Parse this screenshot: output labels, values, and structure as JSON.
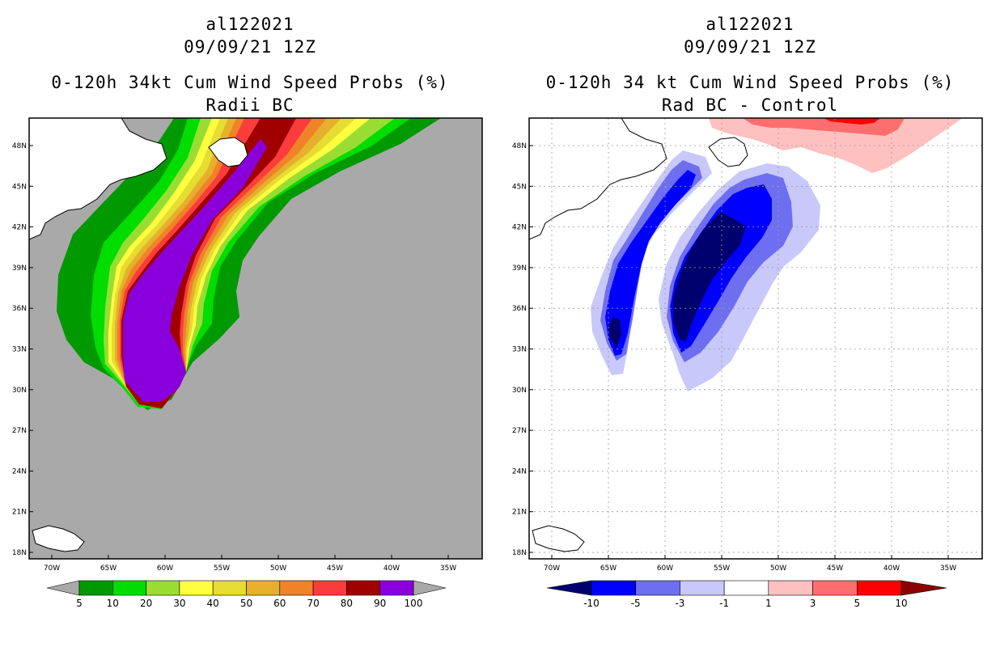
{
  "left_panel": {
    "title_storm": "al122021",
    "title_date": "09/09/21 12Z",
    "title_product": "0-120h 34kt Cum Wind Speed Probs (%)",
    "title_sub": "Radii BC",
    "colorbar_labels": [
      "5",
      "10",
      "20",
      "30",
      "40",
      "50",
      "60",
      "70",
      "80",
      "90",
      "100"
    ],
    "colorbar_colors": [
      "#009a00",
      "#00dd00",
      "#99dd33",
      "#ffff40",
      "#e6dc32",
      "#e6af2d",
      "#f08228",
      "#fa3c3c",
      "#a00000",
      "#8a00dc"
    ]
  },
  "right_panel": {
    "title_storm": "al122021",
    "title_date": "09/09/21 12Z",
    "title_product": "0-120h 34 kt Cum Wind Speed Probs (%)",
    "title_sub": "Rad BC - Control",
    "colorbar_labels": [
      "-10",
      "-5",
      "-3",
      "-1",
      "1",
      "3",
      "5",
      "10"
    ],
    "colorbar_colors": [
      "#0000ff",
      "#6e6ef0",
      "#c8c8fa",
      "#ffffff",
      "#ffc0c0",
      "#ff6e6e",
      "#ff0000"
    ]
  },
  "map": {
    "lat_labels": [
      "48N",
      "45N",
      "42N",
      "39N",
      "36N",
      "33N",
      "30N",
      "27N",
      "24N",
      "21N",
      "18N"
    ],
    "lon_labels": [
      "70W",
      "65W",
      "60W",
      "55W",
      "50W",
      "45W",
      "40W",
      "35W"
    ],
    "land_color": "#ffffff",
    "ocean_color_left": "#a9a9a9"
  }
}
